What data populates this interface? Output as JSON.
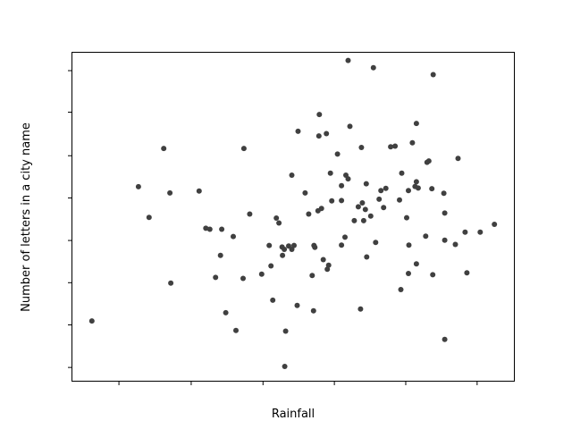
{
  "chart_data": {
    "type": "scatter",
    "title": "",
    "xlabel": "Rainfall",
    "ylabel": "Number of letters in a city name",
    "xlim": [
      0.0,
      1.0
    ],
    "ylim": [
      0.0,
      1.0
    ],
    "x_ticks": [
      0.107,
      0.27,
      0.432,
      0.593,
      0.754,
      0.915
    ],
    "y_ticks": [
      0.043,
      0.172,
      0.3,
      0.428,
      0.557,
      0.685,
      0.817,
      0.943
    ],
    "grid": false,
    "legend": "none",
    "marker_color": "#404040",
    "points": [
      [
        0.046,
        0.184
      ],
      [
        0.151,
        0.591
      ],
      [
        0.175,
        0.498
      ],
      [
        0.208,
        0.707
      ],
      [
        0.222,
        0.572
      ],
      [
        0.224,
        0.299
      ],
      [
        0.288,
        0.578
      ],
      [
        0.303,
        0.465
      ],
      [
        0.312,
        0.462
      ],
      [
        0.339,
        0.462
      ],
      [
        0.336,
        0.383
      ],
      [
        0.325,
        0.316
      ],
      [
        0.348,
        0.209
      ],
      [
        0.365,
        0.44
      ],
      [
        0.371,
        0.155
      ],
      [
        0.387,
        0.313
      ],
      [
        0.389,
        0.707
      ],
      [
        0.402,
        0.508
      ],
      [
        0.429,
        0.326
      ],
      [
        0.446,
        0.413
      ],
      [
        0.45,
        0.351
      ],
      [
        0.454,
        0.247
      ],
      [
        0.462,
        0.496
      ],
      [
        0.468,
        0.481
      ],
      [
        0.475,
        0.408
      ],
      [
        0.476,
        0.383
      ],
      [
        0.48,
        0.401
      ],
      [
        0.481,
        0.046
      ],
      [
        0.483,
        0.153
      ],
      [
        0.49,
        0.411
      ],
      [
        0.497,
        0.401
      ],
      [
        0.502,
        0.413
      ],
      [
        0.497,
        0.626
      ],
      [
        0.509,
        0.231
      ],
      [
        0.511,
        0.759
      ],
      [
        0.527,
        0.572
      ],
      [
        0.535,
        0.508
      ],
      [
        0.546,
        0.215
      ],
      [
        0.543,
        0.322
      ],
      [
        0.547,
        0.413
      ],
      [
        0.549,
        0.407
      ],
      [
        0.556,
        0.518
      ],
      [
        0.558,
        0.745
      ],
      [
        0.559,
        0.81
      ],
      [
        0.564,
        0.525
      ],
      [
        0.568,
        0.37
      ],
      [
        0.575,
        0.752
      ],
      [
        0.577,
        0.341
      ],
      [
        0.58,
        0.353
      ],
      [
        0.584,
        0.632
      ],
      [
        0.587,
        0.548
      ],
      [
        0.6,
        0.69
      ],
      [
        0.609,
        0.549
      ],
      [
        0.609,
        0.414
      ],
      [
        0.609,
        0.594
      ],
      [
        0.619,
        0.626
      ],
      [
        0.617,
        0.438
      ],
      [
        0.624,
        0.615
      ],
      [
        0.624,
        0.974
      ],
      [
        0.628,
        0.774
      ],
      [
        0.638,
        0.488
      ],
      [
        0.647,
        0.53
      ],
      [
        0.652,
        0.22
      ],
      [
        0.654,
        0.71
      ],
      [
        0.656,
        0.542
      ],
      [
        0.659,
        0.488
      ],
      [
        0.665,
        0.6
      ],
      [
        0.663,
        0.522
      ],
      [
        0.666,
        0.378
      ],
      [
        0.675,
        0.502
      ],
      [
        0.681,
        0.952
      ],
      [
        0.686,
        0.422
      ],
      [
        0.694,
        0.553
      ],
      [
        0.698,
        0.579
      ],
      [
        0.704,
        0.528
      ],
      [
        0.709,
        0.586
      ],
      [
        0.72,
        0.712
      ],
      [
        0.73,
        0.714
      ],
      [
        0.745,
        0.632
      ],
      [
        0.74,
        0.551
      ],
      [
        0.743,
        0.279
      ],
      [
        0.76,
        0.579
      ],
      [
        0.756,
        0.497
      ],
      [
        0.76,
        0.328
      ],
      [
        0.761,
        0.414
      ],
      [
        0.769,
        0.724
      ],
      [
        0.775,
        0.592
      ],
      [
        0.778,
        0.606
      ],
      [
        0.778,
        0.783
      ],
      [
        0.782,
        0.587
      ],
      [
        0.778,
        0.357
      ],
      [
        0.799,
        0.441
      ],
      [
        0.802,
        0.665
      ],
      [
        0.806,
        0.669
      ],
      [
        0.813,
        0.585
      ],
      [
        0.816,
        0.931
      ],
      [
        0.815,
        0.324
      ],
      [
        0.84,
        0.571
      ],
      [
        0.842,
        0.511
      ],
      [
        0.842,
        0.429
      ],
      [
        0.842,
        0.128
      ],
      [
        0.866,
        0.416
      ],
      [
        0.872,
        0.677
      ],
      [
        0.888,
        0.453
      ],
      [
        0.892,
        0.33
      ],
      [
        0.922,
        0.453
      ],
      [
        0.954,
        0.477
      ]
    ]
  }
}
